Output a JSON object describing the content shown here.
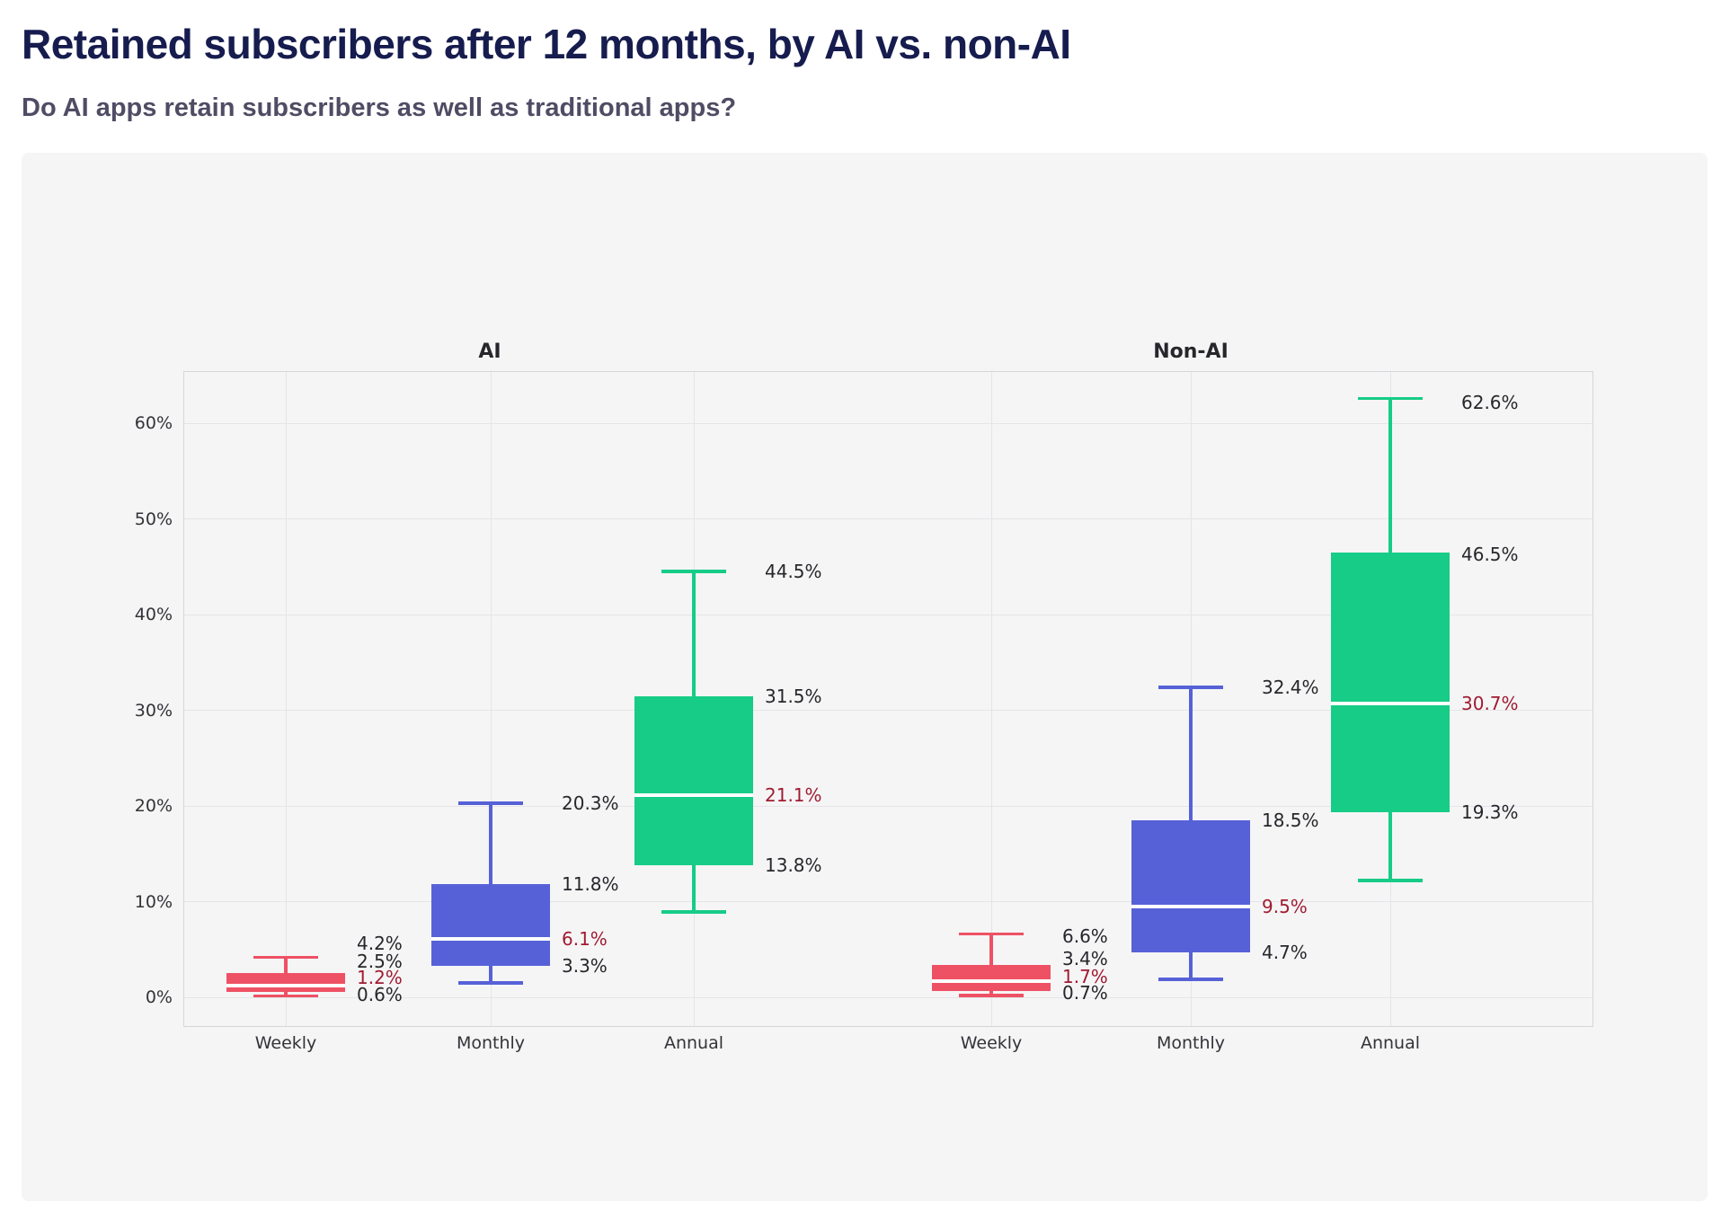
{
  "page": {
    "title": "Retained subscribers after 12 months, by AI vs. non-AI",
    "subtitle": "Do AI apps retain subscribers as well as traditional apps?"
  },
  "chart_data": {
    "type": "boxplot",
    "title": "Retained subscribers after 12 months, by AI vs. non-AI",
    "unit": "%",
    "grid": true,
    "y_axis": {
      "ticks": [
        "0%",
        "10%",
        "20%",
        "30%",
        "40%",
        "50%",
        "60%"
      ],
      "tick_values": [
        0,
        10,
        20,
        30,
        40,
        50,
        60
      ],
      "range": [
        -3,
        65.5
      ]
    },
    "colors": {
      "weekly_box": "#ee5164",
      "monthly_box": "#5761d7",
      "annual_box": "#16cc86",
      "median_line": "#ffffff",
      "median_label_text": "#a11b31",
      "title_text": "#161c4e",
      "subtitle_text": "#4f4c64"
    },
    "facets": [
      {
        "title": "AI",
        "categories": [
          {
            "label": "Weekly",
            "color": "#ee5164",
            "stats": {
              "whisker_low": 0.15,
              "q1": 0.6,
              "median": 1.2,
              "q3": 2.5,
              "whisker_high": 4.2
            },
            "value_labels": [
              {
                "text": "4.2%",
                "pos": 5.6,
                "is_median": false
              },
              {
                "text": "2.5%",
                "pos": 3.8,
                "is_median": false
              },
              {
                "text": "1.2%",
                "pos": 2.05,
                "is_median": true
              },
              {
                "text": "0.6%",
                "pos": 0.3,
                "is_median": false
              }
            ]
          },
          {
            "label": "Monthly",
            "color": "#5761d7",
            "stats": {
              "whisker_low": 1.5,
              "q1": 3.3,
              "median": 6.1,
              "q3": 11.8,
              "whisker_high": 20.3
            },
            "value_labels": [
              {
                "text": "20.3%",
                "pos": 20.3,
                "is_median": false
              },
              {
                "text": "11.8%",
                "pos": 11.8,
                "is_median": false
              },
              {
                "text": "6.1%",
                "pos": 6.1,
                "is_median": true
              },
              {
                "text": "3.3%",
                "pos": 3.3,
                "is_median": false
              }
            ]
          },
          {
            "label": "Annual",
            "color": "#16cc86",
            "stats": {
              "whisker_low": 8.9,
              "q1": 13.8,
              "median": 21.1,
              "q3": 31.5,
              "whisker_high": 44.5
            },
            "value_labels": [
              {
                "text": "44.5%",
                "pos": 44.5,
                "is_median": false
              },
              {
                "text": "31.5%",
                "pos": 31.5,
                "is_median": false
              },
              {
                "text": "21.1%",
                "pos": 21.1,
                "is_median": true
              },
              {
                "text": "13.8%",
                "pos": 13.8,
                "is_median": false
              }
            ]
          }
        ]
      },
      {
        "title": "Non-AI",
        "categories": [
          {
            "label": "Weekly",
            "color": "#ee5164",
            "stats": {
              "whisker_low": 0.2,
              "q1": 0.7,
              "median": 1.7,
              "q3": 3.4,
              "whisker_high": 6.6
            },
            "value_labels": [
              {
                "text": "6.6%",
                "pos": 6.35,
                "is_median": false
              },
              {
                "text": "3.4%",
                "pos": 4.0,
                "is_median": false
              },
              {
                "text": "1.7%",
                "pos": 2.2,
                "is_median": true
              },
              {
                "text": "0.7%",
                "pos": 0.45,
                "is_median": false
              }
            ]
          },
          {
            "label": "Monthly",
            "color": "#5761d7",
            "stats": {
              "whisker_low": 1.9,
              "q1": 4.7,
              "median": 9.5,
              "q3": 18.5,
              "whisker_high": 32.4
            },
            "value_labels": [
              {
                "text": "32.4%",
                "pos": 32.4,
                "is_median": false
              },
              {
                "text": "18.5%",
                "pos": 18.5,
                "is_median": false
              },
              {
                "text": "9.5%",
                "pos": 9.5,
                "is_median": true
              },
              {
                "text": "4.7%",
                "pos": 4.7,
                "is_median": false
              }
            ]
          },
          {
            "label": "Annual",
            "color": "#16cc86",
            "stats": {
              "whisker_low": 12.2,
              "q1": 19.3,
              "median": 30.7,
              "q3": 46.5,
              "whisker_high": 62.6
            },
            "value_labels": [
              {
                "text": "62.6%",
                "pos": 62.2,
                "is_median": false
              },
              {
                "text": "46.5%",
                "pos": 46.3,
                "is_median": false
              },
              {
                "text": "30.7%",
                "pos": 30.7,
                "is_median": true
              },
              {
                "text": "19.3%",
                "pos": 19.3,
                "is_median": false
              }
            ]
          }
        ]
      }
    ]
  }
}
